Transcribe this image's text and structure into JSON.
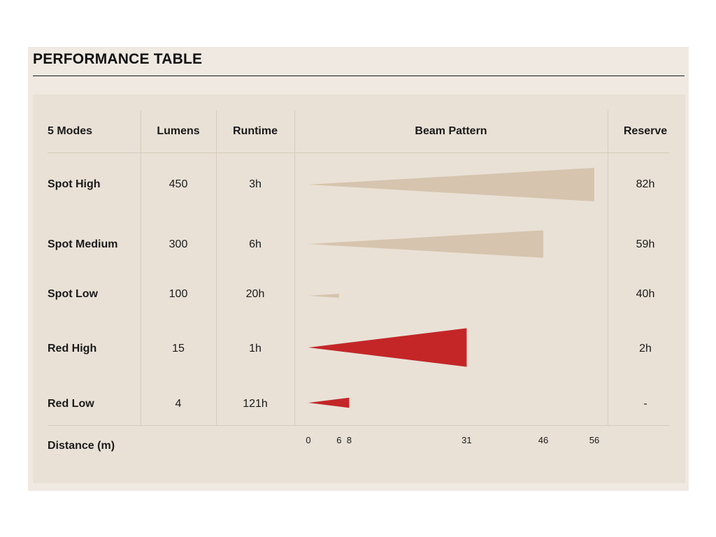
{
  "title": "PERFORMANCE TABLE",
  "headers": {
    "modes": "5 Modes",
    "lumens": "Lumens",
    "runtime": "Runtime",
    "beam": "Beam Pattern",
    "reserve": "Reserve"
  },
  "rows": [
    {
      "mode": "Spot High",
      "lumens": "450",
      "runtime": "3h",
      "reserve": "82h"
    },
    {
      "mode": "Spot Medium",
      "lumens": "300",
      "runtime": "6h",
      "reserve": "59h"
    },
    {
      "mode": "Spot Low",
      "lumens": "100",
      "runtime": "20h",
      "reserve": "40h"
    },
    {
      "mode": "Red High",
      "lumens": "15",
      "runtime": "1h",
      "reserve": "2h"
    },
    {
      "mode": "Red Low",
      "lumens": "4",
      "runtime": "121h",
      "reserve": "-"
    }
  ],
  "distance_label": "Distance (m)",
  "colors": {
    "spot": "#d6c4ae",
    "red": "#c42628"
  },
  "chart_data": {
    "type": "bar",
    "title": "Beam Pattern",
    "xlabel": "Distance (m)",
    "x_ticks": [
      "0",
      "6",
      "8",
      "31",
      "46",
      "56"
    ],
    "xlim": [
      0,
      56
    ],
    "categories": [
      "Spot High",
      "Spot Medium",
      "Spot Low",
      "Red High",
      "Red Low"
    ],
    "values": [
      56,
      46,
      6,
      31,
      8
    ],
    "bar_colors": [
      "#d6c4ae",
      "#d6c4ae",
      "#d6c4ae",
      "#c42628",
      "#c42628"
    ],
    "beam_spread": [
      1.0,
      0.82,
      0.12,
      1.15,
      0.3
    ]
  }
}
